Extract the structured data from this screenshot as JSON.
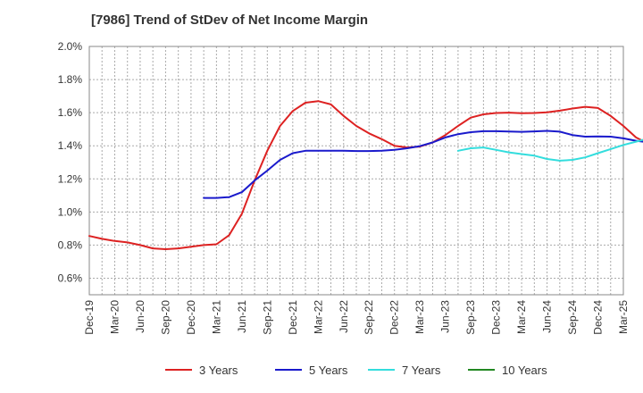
{
  "chart_data": {
    "type": "line",
    "title": "[7986]  Trend of StDev of Net Income Margin",
    "xlabel": "",
    "ylabel": "",
    "x_tick_labels": [
      "Dec-19",
      "Mar-20",
      "Jun-20",
      "Sep-20",
      "Dec-20",
      "Mar-21",
      "Jun-21",
      "Sep-21",
      "Dec-21",
      "Mar-22",
      "Jun-22",
      "Sep-22",
      "Dec-22",
      "Mar-23",
      "Jun-23",
      "Sep-23",
      "Dec-23",
      "Mar-24",
      "Jun-24",
      "Sep-24",
      "Dec-24",
      "Mar-25"
    ],
    "y_tick_labels": [
      "0.6%",
      "0.8%",
      "1.0%",
      "1.2%",
      "1.4%",
      "1.6%",
      "1.8%",
      "2.0%"
    ],
    "ylim": [
      0.5,
      2.0
    ],
    "y_ticks": [
      0.6,
      0.8,
      1.0,
      1.2,
      1.4,
      1.6,
      1.8,
      2.0
    ],
    "grid": true,
    "legend_position": "bottom",
    "series": [
      {
        "name": "3 Years",
        "color": "#dd2222",
        "values": [
          0.855,
          0.838,
          0.825,
          0.816,
          0.8,
          0.78,
          0.775,
          0.78,
          0.79,
          0.8,
          0.805,
          0.86,
          0.99,
          1.19,
          1.37,
          1.52,
          1.61,
          1.66,
          1.67,
          1.65,
          1.58,
          1.52,
          1.475,
          1.44,
          1.4,
          1.39,
          1.395,
          1.42,
          1.465,
          1.52,
          1.57,
          1.59,
          1.598,
          1.6,
          1.597,
          1.598,
          1.602,
          1.612,
          1.625,
          1.635,
          1.628,
          1.58,
          1.52,
          1.45,
          1.41,
          1.405,
          1.42,
          1.48
        ]
      },
      {
        "name": "5 Years",
        "color": "#1a1acc",
        "values": [
          null,
          null,
          null,
          null,
          null,
          null,
          null,
          null,
          null,
          1.085,
          1.085,
          1.09,
          1.12,
          1.19,
          1.25,
          1.315,
          1.355,
          1.37,
          1.37,
          1.37,
          1.37,
          1.368,
          1.368,
          1.37,
          1.375,
          1.385,
          1.398,
          1.42,
          1.45,
          1.47,
          1.482,
          1.488,
          1.488,
          1.486,
          1.484,
          1.487,
          1.49,
          1.485,
          1.465,
          1.455,
          1.456,
          1.455,
          1.445,
          1.43,
          1.42,
          1.415,
          1.425,
          1.45
        ]
      },
      {
        "name": "7 Years",
        "color": "#33dddd",
        "values": [
          null,
          null,
          null,
          null,
          null,
          null,
          null,
          null,
          null,
          null,
          null,
          null,
          null,
          null,
          null,
          null,
          null,
          null,
          null,
          null,
          null,
          null,
          null,
          null,
          null,
          null,
          null,
          null,
          null,
          1.37,
          1.385,
          1.39,
          1.375,
          1.36,
          1.35,
          1.34,
          1.32,
          1.31,
          1.315,
          1.33,
          1.355,
          1.38,
          1.405,
          1.425,
          1.445,
          1.47,
          1.495,
          1.52
        ]
      },
      {
        "name": "10 Years",
        "color": "#228822",
        "values": []
      }
    ]
  }
}
